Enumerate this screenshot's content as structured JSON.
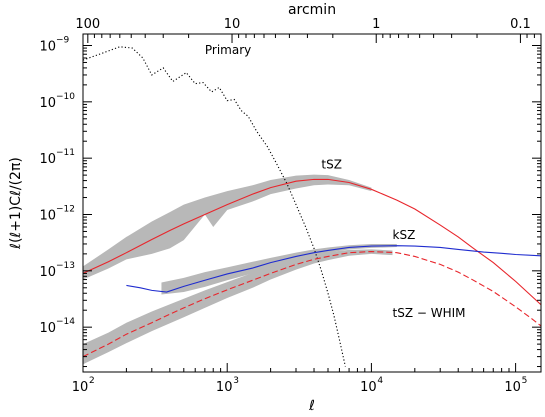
{
  "chart_data": {
    "type": "line",
    "title": "",
    "xlabel": "ℓ",
    "ylabel": "ℓ(ℓ+1)Cℓ/(2π)",
    "top_axis_label": "arcmin",
    "x_scale": "log",
    "y_scale": "log",
    "xlim": [
      100,
      150000
    ],
    "ylim": [
      1.6e-15,
      1.6e-09
    ],
    "grid": false,
    "legend": "none",
    "x_ticks": [
      {
        "value": 100,
        "label": "10",
        "exp": "2"
      },
      {
        "value": 1000,
        "label": "10",
        "exp": "3"
      },
      {
        "value": 10000,
        "label": "10",
        "exp": "4"
      },
      {
        "value": 100000,
        "label": "10",
        "exp": "5"
      }
    ],
    "y_ticks": [
      {
        "value": 1e-09,
        "label": "10",
        "exp": "−9"
      },
      {
        "value": 1e-10,
        "label": "10",
        "exp": "−10"
      },
      {
        "value": 1e-11,
        "label": "10",
        "exp": "−11"
      },
      {
        "value": 1e-12,
        "label": "10",
        "exp": "−12"
      },
      {
        "value": 1e-13,
        "label": "10",
        "exp": "−13"
      },
      {
        "value": 1e-14,
        "label": "10",
        "exp": "−14"
      }
    ],
    "top_ticks": [
      {
        "arcmin": 100,
        "label": "100"
      },
      {
        "arcmin": 10,
        "label": "10"
      },
      {
        "arcmin": 1,
        "label": "1"
      },
      {
        "arcmin": 0.1,
        "label": "0.1"
      }
    ],
    "series": [
      {
        "name": "Primary",
        "style": "dotted",
        "color": "#000000",
        "label": {
          "text": "Primary",
          "at": [
            700,
            7e-10
          ]
        },
        "points": [
          [
            100,
            5.5e-10
          ],
          [
            140,
            7.5e-10
          ],
          [
            180,
            9.5e-10
          ],
          [
            220,
            9e-10
          ],
          [
            260,
            6e-10
          ],
          [
            300,
            3e-10
          ],
          [
            360,
            4e-10
          ],
          [
            420,
            2.3e-10
          ],
          [
            520,
            3.3e-10
          ],
          [
            600,
            2.1e-10
          ],
          [
            680,
            2.2e-10
          ],
          [
            780,
            1.5e-10
          ],
          [
            880,
            1.8e-10
          ],
          [
            1000,
            1.05e-10
          ],
          [
            1120,
            1.1e-10
          ],
          [
            1250,
            7e-11
          ],
          [
            1400,
            5.5e-11
          ],
          [
            1600,
            3e-11
          ],
          [
            1900,
            1.6e-11
          ],
          [
            2200,
            8e-12
          ],
          [
            2600,
            3.5e-12
          ],
          [
            3000,
            1.5e-12
          ],
          [
            3500,
            6e-13
          ],
          [
            4000,
            2.5e-13
          ],
          [
            4500,
            1e-13
          ],
          [
            5000,
            4e-14
          ],
          [
            5500,
            1.6e-14
          ],
          [
            6000,
            6e-15
          ],
          [
            6600,
            2e-15
          ]
        ]
      },
      {
        "name": "tSZ",
        "style": "solid",
        "color": "#e8262c",
        "label": {
          "text": "tSZ",
          "at": [
            4500,
            6.5e-12
          ]
        },
        "points": [
          [
            100,
            9e-14
          ],
          [
            150,
            1.45e-13
          ],
          [
            200,
            2.1e-13
          ],
          [
            300,
            3.6e-13
          ],
          [
            400,
            5.2e-13
          ],
          [
            500,
            6.8e-13
          ],
          [
            700,
            1e-12
          ],
          [
            1000,
            1.5e-12
          ],
          [
            1500,
            2.3e-12
          ],
          [
            2000,
            3e-12
          ],
          [
            3000,
            3.9e-12
          ],
          [
            4000,
            4.2e-12
          ],
          [
            5000,
            4.2e-12
          ],
          [
            7000,
            3.7e-12
          ],
          [
            10000,
            2.8e-12
          ],
          [
            15000,
            1.8e-12
          ],
          [
            20000,
            1.25e-12
          ],
          [
            30000,
            6.5e-13
          ],
          [
            40000,
            4e-13
          ],
          [
            50000,
            2.6e-13
          ],
          [
            70000,
            1.4e-13
          ],
          [
            100000,
            6.5e-14
          ],
          [
            130000,
            3.5e-14
          ],
          [
            150000,
            2.5e-14
          ]
        ]
      },
      {
        "name": "kSZ",
        "style": "solid",
        "color": "#1f2ccf",
        "label": {
          "text": "kSZ",
          "at": [
            14000,
            3.7e-13
          ]
        },
        "points": [
          [
            200,
            5.5e-14
          ],
          [
            250,
            5e-14
          ],
          [
            300,
            4.5e-14
          ],
          [
            380,
            4.2e-14
          ],
          [
            500,
            5.3e-14
          ],
          [
            700,
            6.8e-14
          ],
          [
            1000,
            8.8e-14
          ],
          [
            1500,
            1.12e-13
          ],
          [
            2000,
            1.4e-13
          ],
          [
            3000,
            1.8e-13
          ],
          [
            4000,
            2.1e-13
          ],
          [
            5000,
            2.3e-13
          ],
          [
            7000,
            2.6e-13
          ],
          [
            10000,
            2.75e-13
          ],
          [
            15000,
            2.8e-13
          ],
          [
            20000,
            2.75e-13
          ],
          [
            30000,
            2.6e-13
          ],
          [
            40000,
            2.4e-13
          ],
          [
            60000,
            2.15e-13
          ],
          [
            80000,
            2.05e-13
          ],
          [
            100000,
            1.95e-13
          ],
          [
            150000,
            1.85e-13
          ]
        ]
      },
      {
        "name": "tSZ − WHIM",
        "style": "dashed",
        "color": "#e8262c",
        "label": {
          "text": "tSZ − WHIM",
          "at": [
            14000,
            1.5e-14
          ]
        },
        "points": [
          [
            100,
            3e-15
          ],
          [
            150,
            5e-15
          ],
          [
            200,
            7.5e-15
          ],
          [
            300,
            1.2e-14
          ],
          [
            400,
            1.7e-14
          ],
          [
            500,
            2.2e-14
          ],
          [
            700,
            3.2e-14
          ],
          [
            1000,
            4.6e-14
          ],
          [
            1500,
            6.8e-14
          ],
          [
            2000,
            9e-14
          ],
          [
            3000,
            1.3e-13
          ],
          [
            4000,
            1.6e-13
          ],
          [
            5000,
            1.8e-13
          ],
          [
            7000,
            2.1e-13
          ],
          [
            10000,
            2.2e-13
          ],
          [
            15000,
            2.1e-13
          ],
          [
            20000,
            1.8e-13
          ],
          [
            30000,
            1.3e-13
          ],
          [
            40000,
            9.5e-14
          ],
          [
            50000,
            7e-14
          ],
          [
            70000,
            4.3e-14
          ],
          [
            100000,
            2.3e-14
          ],
          [
            130000,
            1.4e-14
          ],
          [
            150000,
            1.05e-14
          ]
        ]
      }
    ],
    "bands": [
      {
        "name": "tSZ-scatter",
        "color": "#b8b8b8",
        "upper": [
          [
            100,
            1.2e-13
          ],
          [
            150,
            2.4e-13
          ],
          [
            200,
            4e-13
          ],
          [
            300,
            7.5e-13
          ],
          [
            400,
            1.1e-12
          ],
          [
            500,
            1.5e-12
          ],
          [
            700,
            2e-12
          ],
          [
            1000,
            2.6e-12
          ],
          [
            1500,
            3.3e-12
          ],
          [
            2000,
            4.1e-12
          ],
          [
            3000,
            4.9e-12
          ],
          [
            4000,
            5.1e-12
          ],
          [
            5000,
            5e-12
          ],
          [
            7000,
            4.1e-12
          ],
          [
            10000,
            3e-12
          ]
        ],
        "lower": [
          [
            10000,
            2.6e-12
          ],
          [
            7000,
            3.3e-12
          ],
          [
            5000,
            3.4e-12
          ],
          [
            4000,
            3.3e-12
          ],
          [
            3000,
            2.9e-12
          ],
          [
            2000,
            2.3e-12
          ],
          [
            1500,
            1.7e-12
          ],
          [
            1000,
            1.2e-12
          ],
          [
            800,
            6e-13
          ],
          [
            700,
            1e-12
          ],
          [
            500,
            3.5e-13
          ],
          [
            400,
            2.5e-13
          ],
          [
            300,
            2e-13
          ],
          [
            200,
            1.6e-13
          ],
          [
            150,
            1.1e-13
          ],
          [
            100,
            7e-14
          ]
        ]
      },
      {
        "name": "kSZ-scatter",
        "color": "#b8b8b8",
        "upper": [
          [
            350,
            6.2e-14
          ],
          [
            500,
            7.5e-14
          ],
          [
            700,
            9.5e-14
          ],
          [
            1000,
            1.15e-13
          ],
          [
            1500,
            1.45e-13
          ],
          [
            2000,
            1.7e-13
          ],
          [
            3000,
            2.1e-13
          ],
          [
            4000,
            2.4e-13
          ],
          [
            5000,
            2.6e-13
          ],
          [
            7000,
            2.85e-13
          ],
          [
            10000,
            3e-13
          ],
          [
            15000,
            3e-13
          ]
        ],
        "lower": [
          [
            15000,
            2.65e-13
          ],
          [
            10000,
            2.55e-13
          ],
          [
            7000,
            2.4e-13
          ],
          [
            5000,
            2.1e-13
          ],
          [
            4000,
            1.85e-13
          ],
          [
            3000,
            1.55e-13
          ],
          [
            2000,
            1.15e-13
          ],
          [
            1500,
            9e-14
          ],
          [
            1000,
            6.8e-14
          ],
          [
            700,
            5.2e-14
          ],
          [
            500,
            4.2e-14
          ],
          [
            350,
            3.8e-14
          ]
        ]
      },
      {
        "name": "tSZ-WHIM-scatter",
        "color": "#b8b8b8",
        "upper": [
          [
            100,
            5e-15
          ],
          [
            150,
            8e-15
          ],
          [
            200,
            1.2e-14
          ],
          [
            300,
            1.9e-14
          ],
          [
            500,
            3.2e-14
          ],
          [
            700,
            4.5e-14
          ],
          [
            1000,
            6.3e-14
          ],
          [
            1500,
            9.2e-14
          ],
          [
            2000,
            1.2e-13
          ],
          [
            3000,
            1.65e-13
          ],
          [
            4000,
            1.95e-13
          ],
          [
            5000,
            2.15e-13
          ],
          [
            7000,
            2.35e-13
          ],
          [
            10000,
            2.4e-13
          ],
          [
            14000,
            2.3e-13
          ]
        ],
        "lower": [
          [
            14000,
            1.9e-13
          ],
          [
            10000,
            2e-13
          ],
          [
            7000,
            1.85e-13
          ],
          [
            5000,
            1.55e-13
          ],
          [
            4000,
            1.35e-13
          ],
          [
            3000,
            1.05e-13
          ],
          [
            2000,
            7e-14
          ],
          [
            1500,
            5e-14
          ],
          [
            1000,
            3.3e-14
          ],
          [
            700,
            2.2e-14
          ],
          [
            500,
            1.5e-14
          ],
          [
            300,
            8.5e-15
          ],
          [
            200,
            5.2e-15
          ],
          [
            150,
            3.6e-15
          ],
          [
            100,
            2.2e-15
          ]
        ]
      }
    ]
  }
}
